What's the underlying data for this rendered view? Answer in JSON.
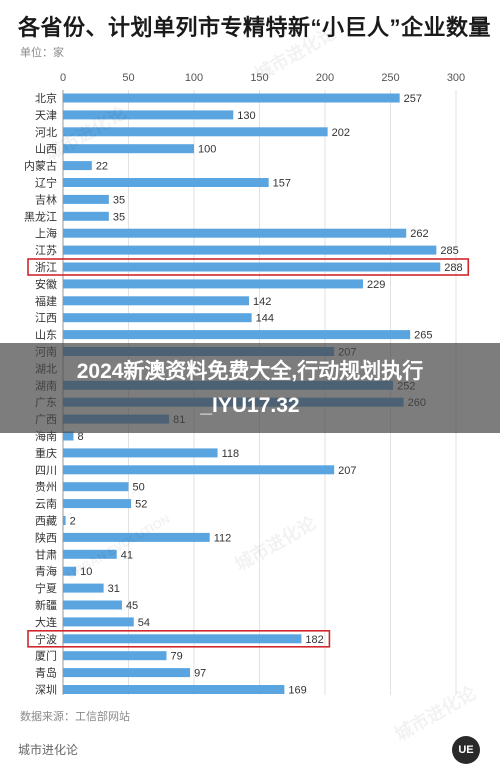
{
  "header": {
    "title": "各省份、计划单列市专精特新“小巨人”企业数量",
    "unit": "单位：家"
  },
  "footer": {
    "source": "数据来源：工信部网站",
    "brand": "城市进化论"
  },
  "banner": {
    "line1": "2024新澳资料免费大全,行动规划执行",
    "line2": "_IYU17.32"
  },
  "logo_text": "UE",
  "watermarks": [
    "城市进化论",
    "URBAN EVOLUTION"
  ],
  "colors": {
    "bar": "#5aa5e0",
    "highlight_box": "#d0282e",
    "grid": "#e2e2e2"
  },
  "chart_data": {
    "type": "bar",
    "orientation": "horizontal",
    "categories": [
      "北京",
      "天津",
      "河北",
      "山西",
      "内蒙古",
      "辽宁",
      "吉林",
      "黑龙江",
      "上海",
      "江苏",
      "浙江",
      "安徽",
      "福建",
      "江西",
      "山东",
      "河南",
      "湖北",
      "湖南",
      "广东",
      "广西",
      "海南",
      "重庆",
      "四川",
      "贵州",
      "云南",
      "西藏",
      "陕西",
      "甘肃",
      "青海",
      "宁夏",
      "新疆",
      "大连",
      "宁波",
      "厦门",
      "青岛",
      "深圳"
    ],
    "values": [
      257,
      130,
      202,
      100,
      22,
      157,
      35,
      35,
      262,
      285,
      288,
      229,
      142,
      144,
      265,
      207,
      null,
      252,
      260,
      81,
      8,
      118,
      207,
      50,
      52,
      2,
      112,
      41,
      10,
      31,
      45,
      54,
      182,
      79,
      97,
      169
    ],
    "value_labels": [
      "257",
      "130",
      "202",
      "100",
      "22",
      "157",
      "35",
      "35",
      "262",
      "285",
      "288",
      "229",
      "142",
      "144",
      "265",
      "207",
      "",
      "252",
      "260",
      "81",
      "8",
      "118",
      "207",
      "50",
      "52",
      "2",
      "112",
      "41",
      "10",
      "31",
      "45",
      "54",
      "182",
      "79",
      "97",
      "169"
    ],
    "xlim": [
      0,
      300
    ],
    "xticks": [
      0,
      50,
      100,
      150,
      200,
      250,
      300
    ],
    "highlighted": [
      "浙江",
      "宁波"
    ],
    "grid": true
  }
}
